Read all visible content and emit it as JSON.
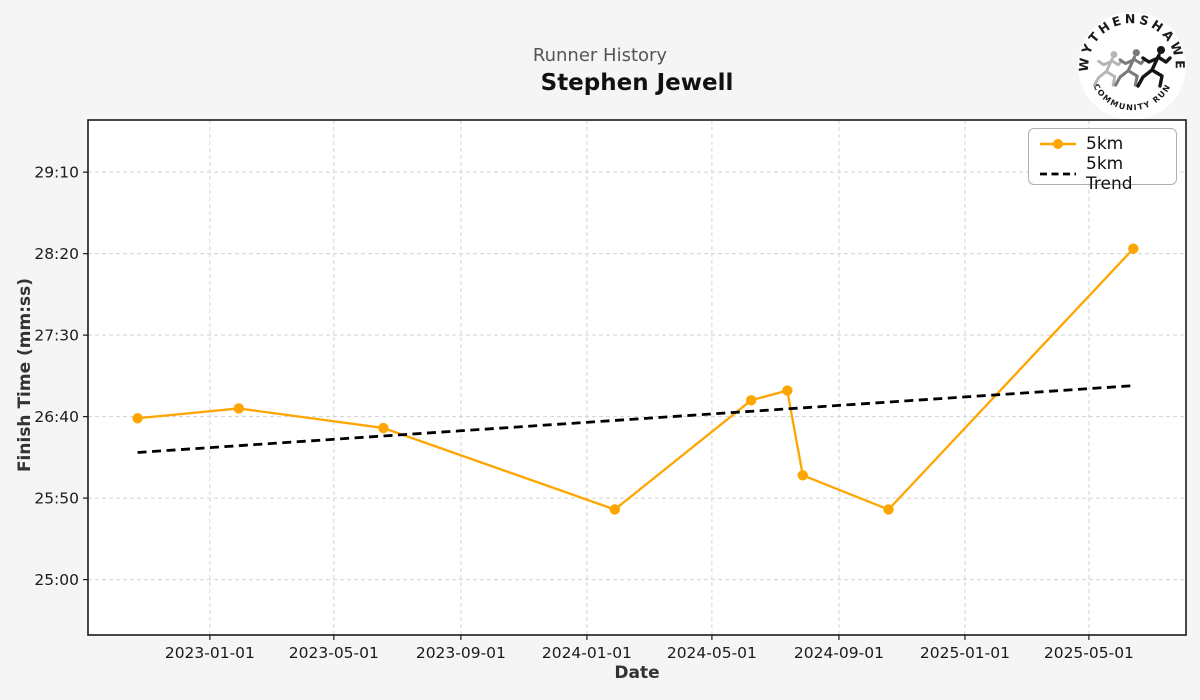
{
  "logo": {
    "arc_top": "WYTHENSHAWE",
    "arc_bottom": "COMMUNITY RUN"
  },
  "chart_data": {
    "type": "line",
    "title": "Runner History",
    "subtitle": "Stephen Jewell",
    "xlabel": "Date",
    "ylabel": "Finish Time (mm:ss)",
    "grid": true,
    "legend_position": "upper right",
    "xlim": [
      "2022-09-05",
      "2025-08-03"
    ],
    "ylim_mmss": [
      "24:26",
      "29:42"
    ],
    "x_tick_labels": [
      "2023-01-01",
      "2023-05-01",
      "2023-09-01",
      "2024-01-01",
      "2024-05-01",
      "2024-09-01",
      "2025-01-01",
      "2025-05-01"
    ],
    "y_tick_labels": [
      "29:10",
      "28:20",
      "27:30",
      "26:40",
      "25:50",
      "25:00"
    ],
    "series": [
      {
        "name": "5km",
        "color": "#FFA500",
        "line_style": "solid",
        "marker": "circle",
        "points": [
          {
            "date": "2022-10-23",
            "time": "26:39"
          },
          {
            "date": "2023-01-29",
            "time": "26:45"
          },
          {
            "date": "2023-06-18",
            "time": "26:33"
          },
          {
            "date": "2024-01-28",
            "time": "25:43"
          },
          {
            "date": "2024-06-08",
            "time": "26:50"
          },
          {
            "date": "2024-07-13",
            "time": "26:56"
          },
          {
            "date": "2024-07-28",
            "time": "26:04"
          },
          {
            "date": "2024-10-19",
            "time": "25:43"
          },
          {
            "date": "2025-06-13",
            "time": "28:23"
          }
        ]
      },
      {
        "name": "5km Trend",
        "color": "#000000",
        "line_style": "dashed",
        "marker": "none",
        "points": [
          {
            "date": "2022-10-23",
            "time": "26:18"
          },
          {
            "date": "2025-06-13",
            "time": "26:59"
          }
        ]
      }
    ]
  }
}
